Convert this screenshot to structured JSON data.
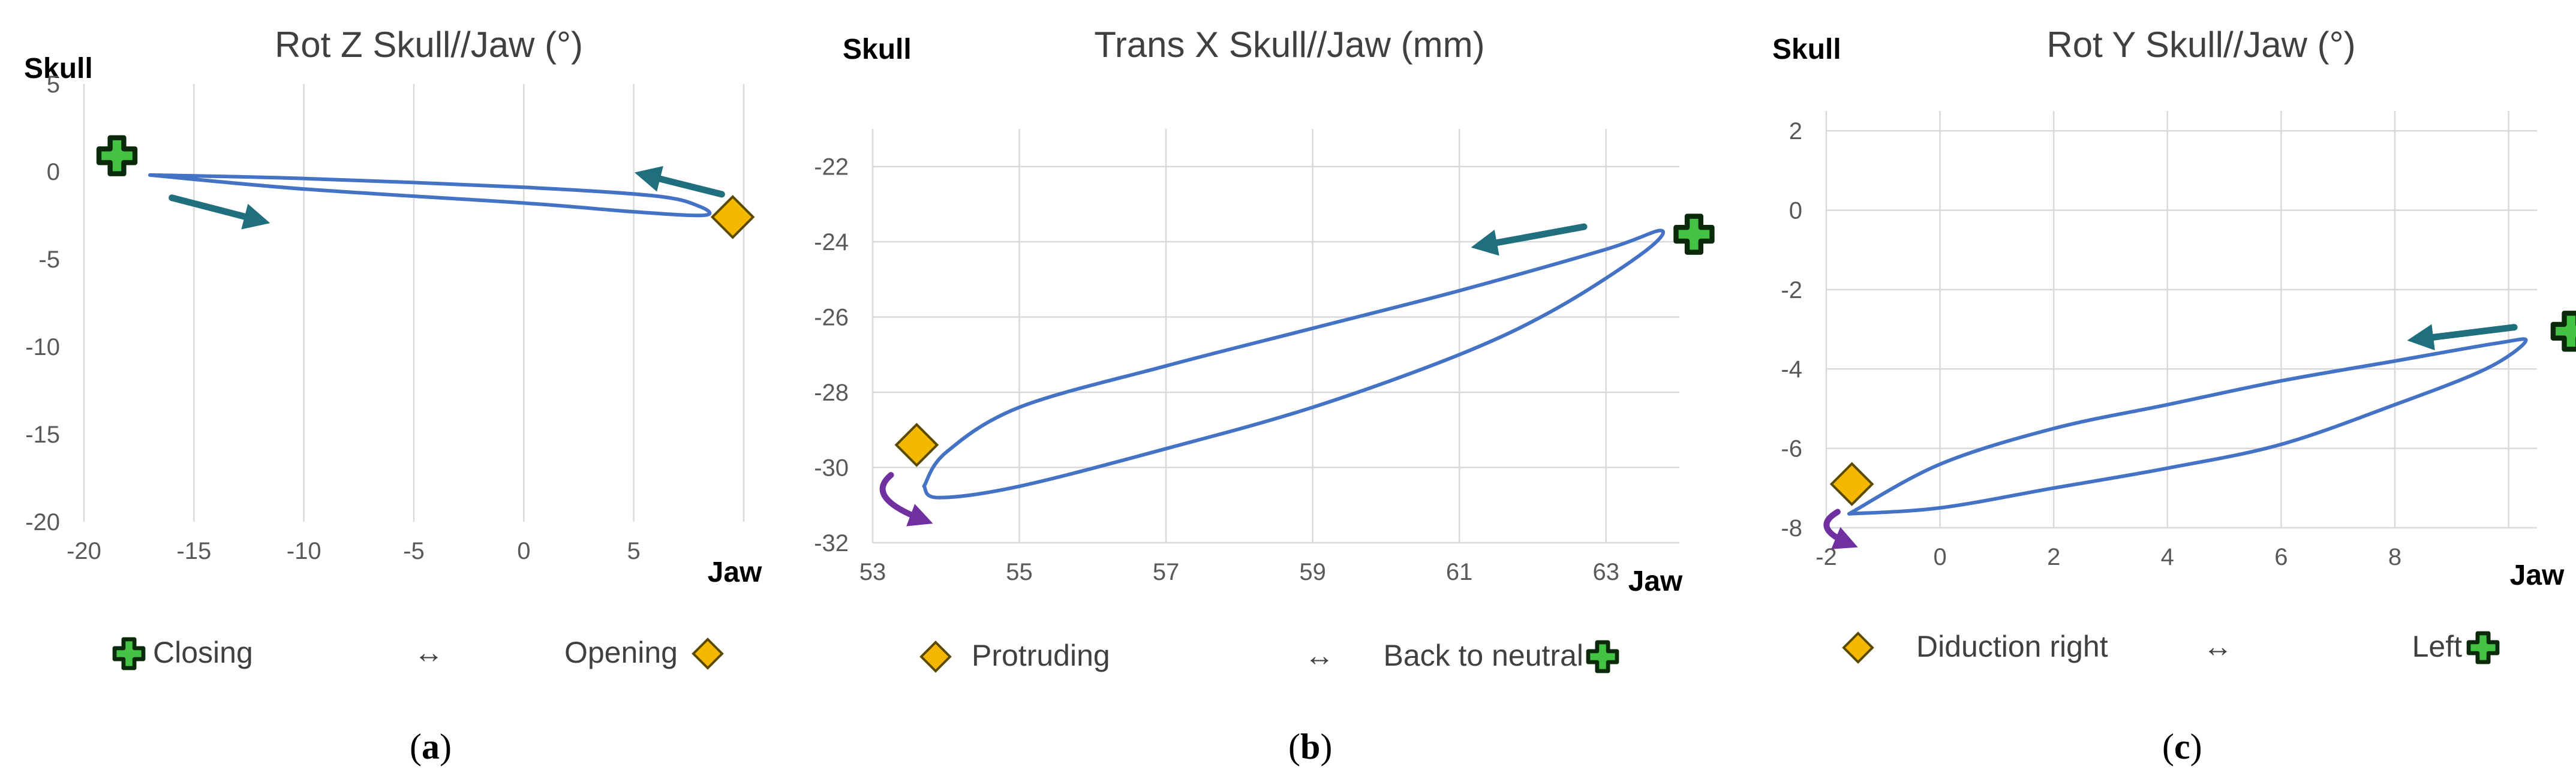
{
  "colors": {
    "curve": "#4472c4",
    "grid": "#d9d9d9",
    "arrow": "#1f6f7f",
    "arrow_curved": "#7030a0",
    "diamond_fill": "#f5b800",
    "diamond_stroke": "#5a4a00",
    "cross_fill": "#44c244",
    "cross_stroke": "#0b2a0b",
    "tick_text": "#595959",
    "title_text": "#404040"
  },
  "chart_data": [
    {
      "panel_label": "a",
      "type": "line",
      "title": "Rot Z Skull//Jaw (°)",
      "ylabel": "Skull",
      "xlabel": "Jaw",
      "xlim": [
        -20,
        10
      ],
      "ylim": [
        -20,
        5
      ],
      "xticks": [
        -20,
        -15,
        -10,
        -5,
        0,
        5
      ],
      "yticks": [
        5,
        0,
        -5,
        -10,
        -15,
        -20
      ],
      "grid": "vertical",
      "series": [
        {
          "closed": true,
          "points": [
            [
              -17,
              -0.2
            ],
            [
              -10,
              -0.4
            ],
            [
              0,
              -0.9
            ],
            [
              6,
              -1.4
            ],
            [
              8,
              -2
            ],
            [
              8.2,
              -2.5
            ],
            [
              5,
              -2.3
            ],
            [
              0,
              -1.8
            ],
            [
              -10,
              -1
            ],
            [
              -17,
              -0.2
            ]
          ]
        }
      ],
      "markers": [
        {
          "shape": "cross",
          "x": -18.5,
          "y": 0.9
        },
        {
          "shape": "diamond",
          "x": 9.5,
          "y": -2.6
        }
      ],
      "arrows": [
        {
          "kind": "straight",
          "from": [
            9,
            -1.3
          ],
          "to": [
            5.5,
            -0.2
          ]
        },
        {
          "kind": "straight",
          "from": [
            -16,
            -1.5
          ],
          "to": [
            -12,
            -2.8
          ]
        }
      ],
      "legend": {
        "left": "Closing",
        "middle": "↔",
        "right": "Opening"
      }
    },
    {
      "panel_label": "b",
      "type": "line",
      "title": "Trans X Skull//Jaw (mm)",
      "ylabel": "Skull",
      "xlabel": "Jaw",
      "xlim": [
        53,
        64
      ],
      "ylim": [
        -32,
        -21
      ],
      "xticks": [
        53,
        55,
        57,
        59,
        61,
        63
      ],
      "yticks": [
        -22,
        -24,
        -26,
        -28,
        -30,
        -32
      ],
      "grid": "both",
      "series": [
        {
          "closed": true,
          "points": [
            [
              53.7,
              -30.5
            ],
            [
              54,
              -29.6
            ],
            [
              55,
              -28.4
            ],
            [
              57,
              -27.3
            ],
            [
              59,
              -26.3
            ],
            [
              61,
              -25.3
            ],
            [
              63,
              -24.2
            ],
            [
              63.75,
              -23.7
            ],
            [
              63.5,
              -24.3
            ],
            [
              62.3,
              -25.8
            ],
            [
              61,
              -27
            ],
            [
              59,
              -28.4
            ],
            [
              57,
              -29.5
            ],
            [
              55,
              -30.5
            ],
            [
              53.9,
              -30.8
            ],
            [
              53.7,
              -30.5
            ]
          ]
        }
      ],
      "markers": [
        {
          "shape": "cross",
          "x": 64.2,
          "y": -23.8
        },
        {
          "shape": "diamond",
          "x": 53.6,
          "y": -29.4
        }
      ],
      "arrows": [
        {
          "kind": "straight",
          "from": [
            62.7,
            -23.6
          ],
          "to": [
            61.3,
            -24.1
          ]
        },
        {
          "kind": "curved",
          "from": [
            53.25,
            -30.2
          ],
          "to": [
            53.7,
            -31.4
          ]
        }
      ],
      "legend": {
        "left": "Protruding",
        "middle": "↔",
        "right": "Back to neutral"
      }
    },
    {
      "panel_label": "c",
      "type": "line",
      "title": "Rot Y Skull//Jaw (°)",
      "ylabel": "Skull",
      "xlabel": "Jaw",
      "xlim": [
        -2,
        10.5
      ],
      "ylim": [
        -8,
        2.5
      ],
      "xticks": [
        -2,
        0,
        2,
        4,
        6,
        8
      ],
      "yticks": [
        2,
        0,
        -2,
        -4,
        -6,
        -8
      ],
      "grid": "both",
      "series": [
        {
          "closed": true,
          "points": [
            [
              -1.6,
              -7.65
            ],
            [
              0,
              -6.4
            ],
            [
              2,
              -5.5
            ],
            [
              4,
              -4.9
            ],
            [
              6,
              -4.3
            ],
            [
              8,
              -3.8
            ],
            [
              9.8,
              -3.35
            ],
            [
              10.3,
              -3.3
            ],
            [
              9.6,
              -4
            ],
            [
              8,
              -4.9
            ],
            [
              6,
              -5.9
            ],
            [
              4,
              -6.5
            ],
            [
              2,
              -7
            ],
            [
              0,
              -7.5
            ],
            [
              -1.6,
              -7.65
            ]
          ]
        }
      ],
      "markers": [
        {
          "shape": "cross",
          "x": 11.1,
          "y": -3.05
        },
        {
          "shape": "diamond",
          "x": -1.55,
          "y": -6.9
        }
      ],
      "arrows": [
        {
          "kind": "straight",
          "from": [
            10.1,
            -2.95
          ],
          "to": [
            8.4,
            -3.25
          ]
        },
        {
          "kind": "curved",
          "from": [
            -1.8,
            -7.6
          ],
          "to": [
            -1.6,
            -8.4
          ]
        }
      ],
      "legend": {
        "left": "Diduction right",
        "middle": "↔",
        "right": "Left"
      }
    }
  ]
}
